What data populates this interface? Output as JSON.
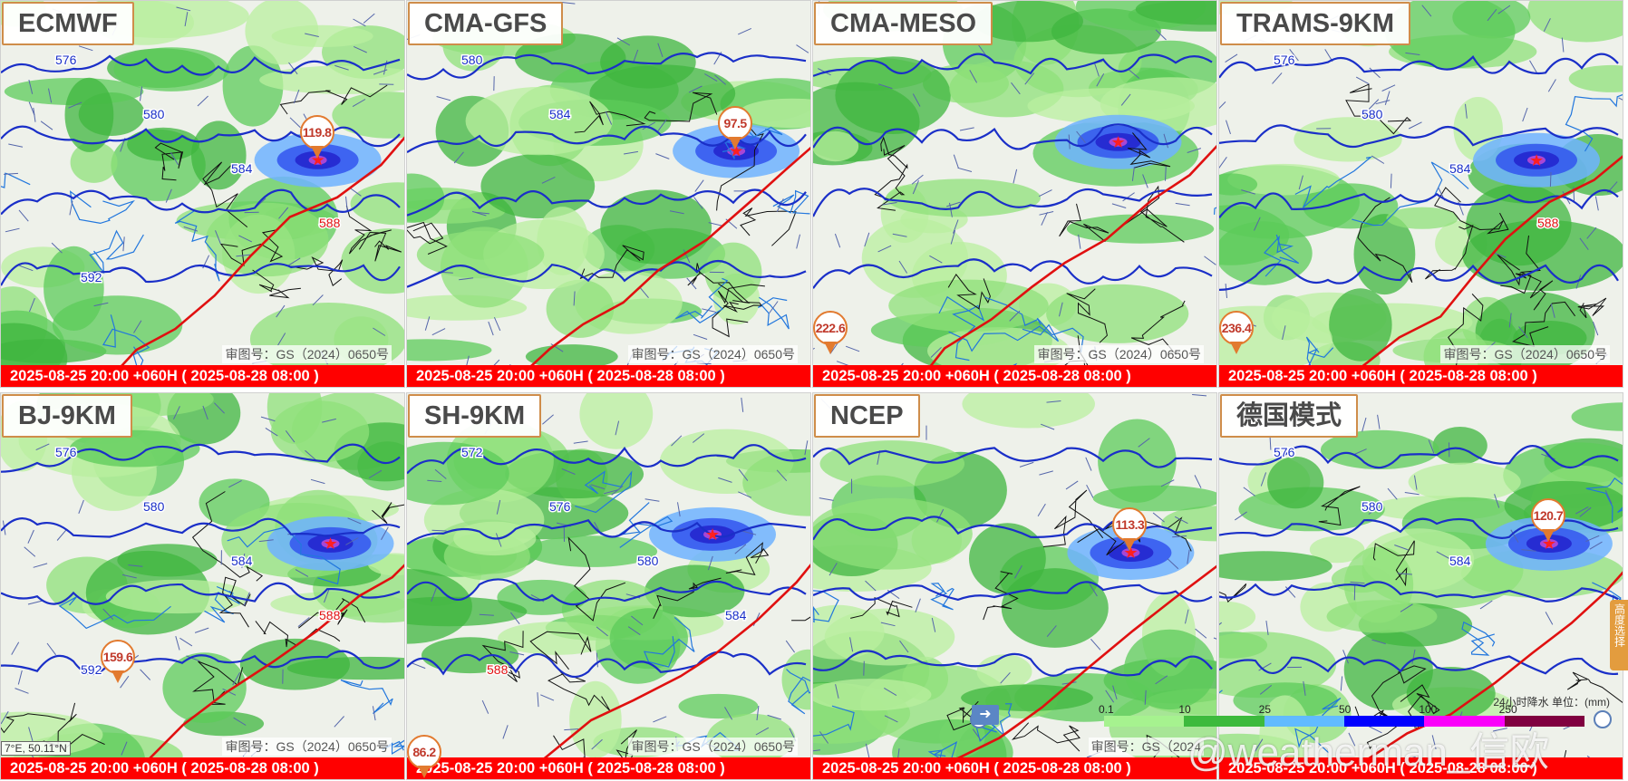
{
  "panels": [
    {
      "model": "ECMWF",
      "time": "2025-08-25 20:00 +060H ( 2025-08-28 08:00 )",
      "approval": "审图号：GS（2024）0650号",
      "max_marker": "119.8",
      "contours": [
        "576",
        "580",
        "584",
        "588",
        "592"
      ]
    },
    {
      "model": "CMA-GFS",
      "time": "2025-08-25 20:00 +060H ( 2025-08-28 08:00 )",
      "approval": "审图号：GS（2024）0650号",
      "max_marker": "97.5",
      "contours": [
        "580",
        "584"
      ]
    },
    {
      "model": "CMA-MESO",
      "time": "2025-08-25 20:00 +060H ( 2025-08-28 08:00 )",
      "approval": "审图号：GS（2024）0650号",
      "max_marker": "222.6",
      "contours": []
    },
    {
      "model": "TRAMS-9KM",
      "time": "2025-08-25 20:00 +060H ( 2025-08-28 08:00 )",
      "approval": "审图号：GS（2024）0650号",
      "max_marker": "236.4",
      "contours": [
        "576",
        "580",
        "584",
        "588"
      ]
    },
    {
      "model": "BJ-9KM",
      "time": "2025-08-25 20:00 +060H ( 2025-08-28 08:00 )",
      "approval": "审图号：GS（2024）0650号",
      "max_marker": "159.6",
      "contours": [
        "576",
        "580",
        "584",
        "588",
        "592"
      ]
    },
    {
      "model": "SH-9KM",
      "time": "2025-08-25 20:00 +060H ( 2025-08-28 08:00 )",
      "approval": "审图号：GS（2024）0650号",
      "max_marker": "86.2",
      "contours": [
        "572",
        "576",
        "580",
        "584",
        "588"
      ]
    },
    {
      "model": "NCEP",
      "time": "2025-08-25 20:00 +060H ( 2025-08-28 08:00 )",
      "approval": "审图号：GS（2024",
      "max_marker": "113.3",
      "contours": []
    },
    {
      "model": "德国模式",
      "time": "2025-08-25 20:00 +060H ( 2025-08-28 08:00 )",
      "approval": "",
      "max_marker": "120.7",
      "contours": [
        "576",
        "580",
        "584"
      ]
    }
  ],
  "coords_readout": "7°E, 50.11°N",
  "legend": {
    "title": "24小时降水 单位：(mm)",
    "ticks": [
      "0.1",
      "10",
      "25",
      "50",
      "100",
      "250"
    ],
    "colors": [
      "#a6f28f",
      "#3dba3d",
      "#61bbff",
      "#0000ff",
      "#fa00fa",
      "#800040"
    ]
  },
  "side_tab": "高度选择",
  "watermark": "@weatherman_信欧",
  "colors": {
    "timebar": "#ff0000",
    "label_border": "#cf8d4a",
    "contour": "#1a2fc8",
    "ridge_588": "#e01010"
  }
}
